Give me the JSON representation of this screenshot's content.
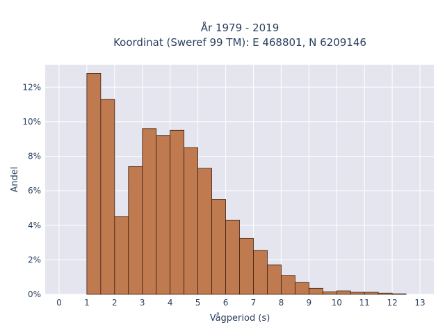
{
  "chart_data": {
    "type": "bar",
    "title_line1": "År 1979 - 2019",
    "title_line2": "Koordinat (Sweref 99 TM): E 468801, N 6209146",
    "xlabel": "Vågperiod (s)",
    "ylabel": "Andel",
    "x_ticks": [
      "0",
      "1",
      "2",
      "3",
      "4",
      "5",
      "6",
      "7",
      "8",
      "9",
      "10",
      "11",
      "12",
      "13"
    ],
    "y_ticks": [
      "0%",
      "2%",
      "4%",
      "6%",
      "8%",
      "10%",
      "12%"
    ],
    "xlim": [
      -0.5,
      13.5
    ],
    "ylim": [
      0,
      13.3
    ],
    "bin_width": 0.5,
    "bin_starts": [
      1,
      1.5,
      2,
      2.5,
      3,
      3.5,
      4,
      4.5,
      5,
      5.5,
      6,
      6.5,
      7,
      7.5,
      8,
      8.5,
      9,
      9.5,
      10,
      10.5,
      11,
      11.5,
      12
    ],
    "values": [
      12.8,
      11.3,
      4.5,
      7.4,
      9.6,
      9.2,
      9.5,
      8.5,
      7.3,
      5.5,
      4.3,
      3.25,
      2.55,
      1.7,
      1.1,
      0.7,
      0.35,
      0.15,
      0.2,
      0.12,
      0.12,
      0.07,
      0.03
    ],
    "bar_color": "#c07a50",
    "bar_edge": "#3a2010",
    "plot_bg": "#e5e5f0",
    "grid": true
  }
}
